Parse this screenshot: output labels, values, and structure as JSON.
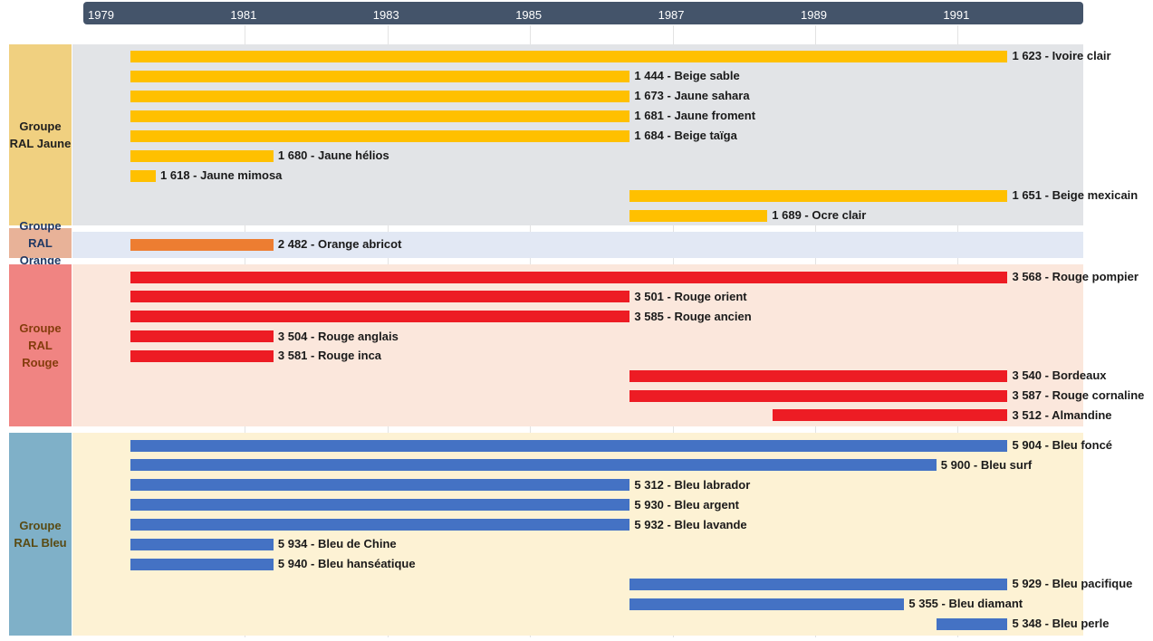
{
  "chart_data": {
    "type": "gantt-timeline",
    "x_axis": {
      "ticks": [
        "1979",
        "1981",
        "1983",
        "1985",
        "1987",
        "1989",
        "1991"
      ],
      "range": [
        1978.75,
        1992.75
      ]
    },
    "groups": [
      {
        "label": "Groupe\nRAL Jaune",
        "label_color": "#1f1f1f",
        "side_color": "#f0d080",
        "band_color": "#e2e4e7",
        "bar_color": "#ffc000",
        "items": [
          {
            "label": "1 623 - Ivoire clair",
            "start": 1979.4,
            "end": 1991.7
          },
          {
            "label": "1 444 - Beige sable",
            "start": 1979.4,
            "end": 1986.4
          },
          {
            "label": "1 673 - Jaune sahara",
            "start": 1979.4,
            "end": 1986.4
          },
          {
            "label": "1 681 - Jaune froment",
            "start": 1979.4,
            "end": 1986.4
          },
          {
            "label": "1 684 - Beige taïga",
            "start": 1979.4,
            "end": 1986.4
          },
          {
            "label": "1 680 - Jaune hélios",
            "start": 1979.4,
            "end": 1981.4
          },
          {
            "label": "1 618 - Jaune mimosa",
            "start": 1979.4,
            "end": 1979.75
          },
          {
            "label": "1 651 - Beige mexicain",
            "start": 1986.4,
            "end": 1991.7
          },
          {
            "label": "1 689 - Ocre clair",
            "start": 1986.4,
            "end": 1988.33
          }
        ]
      },
      {
        "label": "Groupe\nRAL\nOrange",
        "label_color": "#203864",
        "side_color": "#e8b298",
        "band_color": "#e2e8f4",
        "bar_color": "#ed7d31",
        "items": [
          {
            "label": "2 482 - Orange abricot",
            "start": 1979.4,
            "end": 1981.4
          }
        ]
      },
      {
        "label": "Groupe\nRAL\nRouge",
        "label_color": "#843c0c",
        "side_color": "#f08482",
        "band_color": "#fbe7dc",
        "bar_color": "#ed1c24",
        "items": [
          {
            "label": "3 568 - Rouge pompier",
            "start": 1979.4,
            "end": 1991.7
          },
          {
            "label": "3 501 - Rouge orient",
            "start": 1979.4,
            "end": 1986.4
          },
          {
            "label": "3 585 - Rouge ancien",
            "start": 1979.4,
            "end": 1986.4
          },
          {
            "label": "3 504 - Rouge anglais",
            "start": 1979.4,
            "end": 1981.4
          },
          {
            "label": "3 581 - Rouge inca",
            "start": 1979.4,
            "end": 1981.4
          },
          {
            "label": "3 540 - Bordeaux",
            "start": 1986.4,
            "end": 1991.7
          },
          {
            "label": "3 587 - Rouge cornaline",
            "start": 1986.4,
            "end": 1991.7
          },
          {
            "label": "3 512 - Almandine",
            "start": 1988.4,
            "end": 1991.7
          }
        ]
      },
      {
        "label": "Groupe\nRAL Bleu",
        "label_color": "#594a13",
        "side_color": "#7fb0c8",
        "band_color": "#fdf2d4",
        "bar_color": "#4472c4",
        "items": [
          {
            "label": "5 904 - Bleu foncé",
            "start": 1979.4,
            "end": 1991.7
          },
          {
            "label": "5 900 - Bleu surf",
            "start": 1979.4,
            "end": 1990.7
          },
          {
            "label": "5 312 - Bleu labrador",
            "start": 1979.4,
            "end": 1986.4
          },
          {
            "label": "5 930 - Bleu argent",
            "start": 1979.4,
            "end": 1986.4
          },
          {
            "label": "5 932 - Bleu lavande",
            "start": 1979.4,
            "end": 1986.4
          },
          {
            "label": "5 934 - Bleu de Chine",
            "start": 1979.4,
            "end": 1981.4
          },
          {
            "label": "5 940 - Bleu hanséatique",
            "start": 1979.4,
            "end": 1981.4
          },
          {
            "label": "5 929 - Bleu pacifique",
            "start": 1986.4,
            "end": 1991.7
          },
          {
            "label": "5 355 - Bleu diamant",
            "start": 1986.4,
            "end": 1990.25
          },
          {
            "label": "5 348 - Bleu perle",
            "start": 1990.7,
            "end": 1991.7
          }
        ]
      }
    ]
  }
}
